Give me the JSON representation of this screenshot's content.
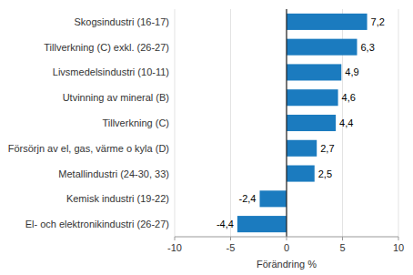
{
  "chart_data": {
    "type": "bar",
    "orientation": "horizontal",
    "categories": [
      "El- och elektronikindustri (26-27)",
      "Kemisk industri (19-22)",
      "Metallindustri (24-30, 33)",
      "Försörjn av el, gas, värme o kyla (D)",
      "Tillverkning (C)",
      "Utvinning av mineral (B)",
      "Livsmedelsindustri (10-11)",
      "Tillverkning (C) exkl. (26-27)",
      "Skogsindustri (16-17)"
    ],
    "values": [
      -4.4,
      -2.4,
      2.5,
      2.7,
      4.4,
      4.6,
      4.9,
      6.3,
      7.2
    ],
    "value_labels": [
      "-4,4",
      "-2,4",
      "2,5",
      "2,7",
      "4,4",
      "4,6",
      "4,9",
      "6,3",
      "7,2"
    ],
    "data_labels": true,
    "color": "#1b7bbf",
    "xlabel": "Förändring %",
    "xlim": [
      -10,
      10
    ],
    "xticks": [
      -10,
      -5,
      0,
      5,
      10
    ],
    "grid": true
  }
}
